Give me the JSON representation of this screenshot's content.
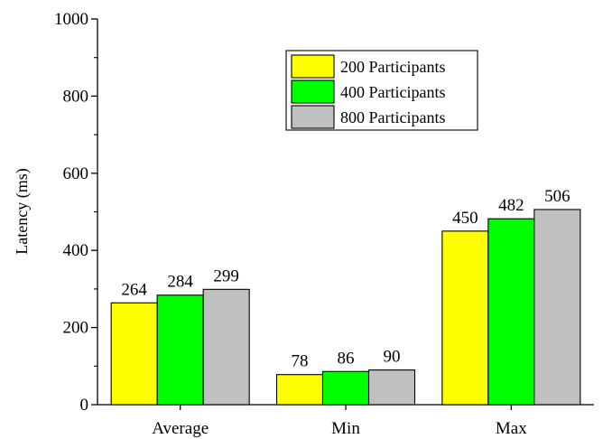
{
  "chart_data": {
    "type": "bar",
    "title": "",
    "xlabel": "",
    "ylabel": "Latency (ms)",
    "ylim": [
      0,
      1000
    ],
    "yticks": [
      0,
      200,
      400,
      600,
      800,
      1000
    ],
    "grid": false,
    "legend_position": "top-right",
    "categories": [
      "Average",
      "Min",
      "Max"
    ],
    "series": [
      {
        "name": "200 Participants",
        "color": "#ffff00",
        "values": [
          264,
          78,
          450
        ]
      },
      {
        "name": "400 Participants",
        "color": "#00ff00",
        "values": [
          284,
          86,
          482
        ]
      },
      {
        "name": "800 Participants",
        "color": "#c0c0c0",
        "values": [
          299,
          90,
          506
        ]
      }
    ],
    "data_labels": [
      [
        "264",
        "78",
        "450"
      ],
      [
        "284",
        "86",
        "482"
      ],
      [
        "299",
        "90",
        "506"
      ]
    ]
  }
}
